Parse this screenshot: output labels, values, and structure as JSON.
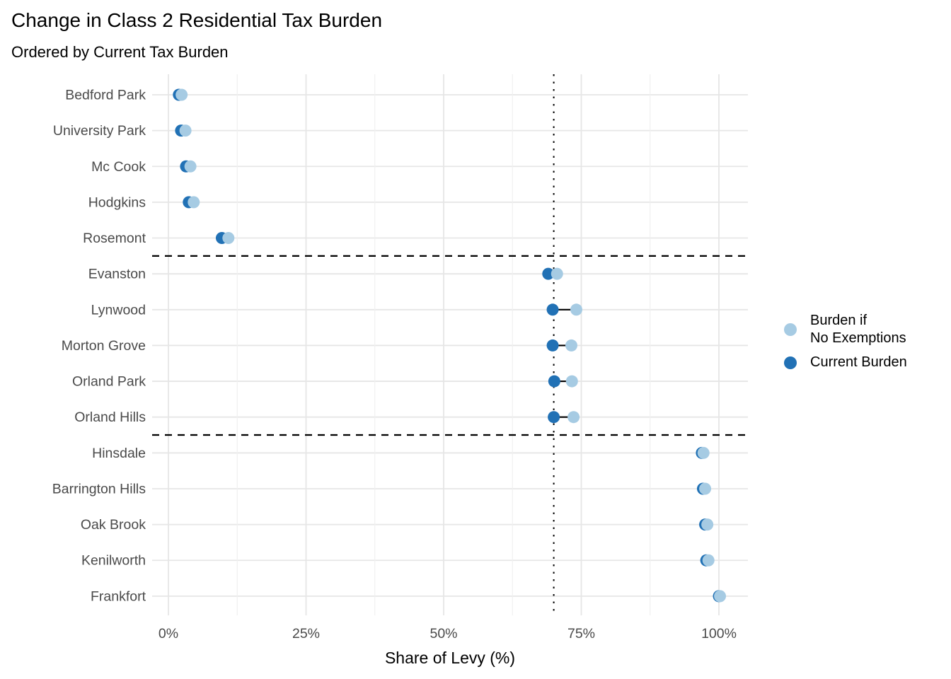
{
  "title": "Change in Class 2 Residential Tax Burden",
  "subtitle": "Ordered by Current Tax Burden",
  "colors": {
    "no_exemptions_dot": "#a6cbe3",
    "current_burden_dot": "#2171b5",
    "connector": "#000000",
    "reference_line": "#000000",
    "grid_major": "#e6e6e6",
    "grid_minor": "#f0f0f0",
    "axis_text": "#4a4a4a",
    "title_text": "#000000"
  },
  "legend": {
    "items": [
      {
        "lines": [
          "Burden if",
          "No Exemptions"
        ],
        "color": "#a6cbe3"
      },
      {
        "lines": [
          "Current Burden"
        ],
        "color": "#2171b5"
      }
    ]
  },
  "chart_data": {
    "type": "scatter",
    "variant": "dumbbell-dot-plot",
    "title": "Change in Class 2 Residential Tax Burden",
    "subtitle": "Ordered by Current Tax Burden",
    "xlabel": "Share of Levy (%)",
    "xlim": [
      -3,
      105.5
    ],
    "x_major_ticks": [
      0,
      25,
      50,
      75,
      100
    ],
    "x_tick_labels": [
      "0%",
      "25%",
      "50%",
      "75%",
      "100%"
    ],
    "x_minor_ticks": [
      12.5,
      37.5,
      62.5,
      87.5
    ],
    "grid": true,
    "legend_position": "right",
    "categories": [
      "Bedford Park",
      "University Park",
      "Mc Cook",
      "Hodgkins",
      "Rosemont",
      "Evanston",
      "Lynwood",
      "Morton Grove",
      "Orland Park",
      "Orland Hills",
      "Hinsdale",
      "Barrington Hills",
      "Oak Brook",
      "Kenilworth",
      "Frankfort"
    ],
    "series": [
      {
        "name": "Burden if No Exemptions",
        "color": "#a6cbe3",
        "values": [
          2.4,
          3.1,
          4.0,
          4.6,
          10.9,
          70.6,
          74.1,
          73.2,
          73.3,
          73.6,
          97.2,
          97.5,
          97.9,
          98.1,
          100.2
        ]
      },
      {
        "name": "Current Burden",
        "color": "#2171b5",
        "values": [
          1.9,
          2.3,
          3.2,
          3.7,
          9.7,
          69.0,
          69.8,
          69.8,
          70.1,
          70.0,
          96.9,
          97.1,
          97.5,
          97.7,
          100.0
        ]
      }
    ],
    "reference_lines": [
      {
        "type": "vline",
        "style": "dotted",
        "x": 70,
        "color": "#000000"
      },
      {
        "type": "hline",
        "style": "dashed",
        "between_categories": [
          "Rosemont",
          "Evanston"
        ],
        "color": "#000000"
      },
      {
        "type": "hline",
        "style": "dashed",
        "between_categories": [
          "Orland Hills",
          "Hinsdale"
        ],
        "color": "#000000"
      }
    ]
  }
}
